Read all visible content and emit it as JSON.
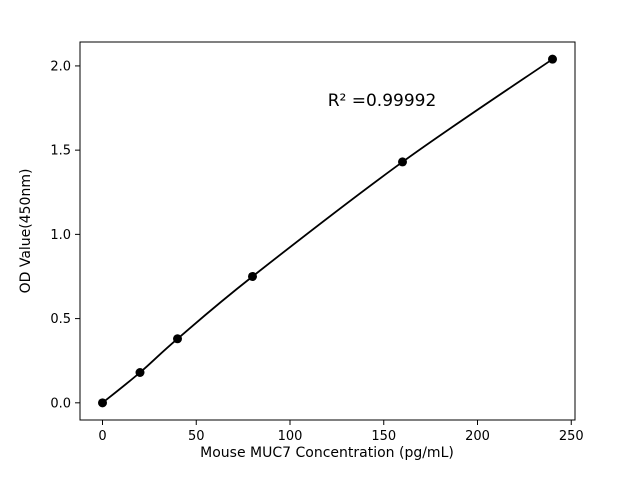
{
  "chart_data": {
    "type": "line",
    "series_name": "standard-curve",
    "x": [
      0,
      20,
      40,
      80,
      160,
      240
    ],
    "y": [
      0.0,
      0.18,
      0.38,
      0.75,
      1.43,
      2.04
    ],
    "title": "",
    "xlabel": "Mouse MUC7 Concentration (pg/mL)",
    "ylabel": "OD Value(450nm)",
    "annotation": "R² =0.99992",
    "xlim": [
      -12,
      252
    ],
    "ylim": [
      -0.102,
      2.142
    ],
    "xticks": {
      "values": [
        0,
        50,
        100,
        150,
        200,
        250
      ],
      "labels": [
        "0",
        "50",
        "100",
        "150",
        "200",
        "250"
      ]
    },
    "yticks": {
      "values": [
        0.0,
        0.5,
        1.0,
        1.5,
        2.0
      ],
      "labels": [
        "0.0",
        "0.5",
        "1.0",
        "1.5",
        "2.0"
      ]
    },
    "grid": false,
    "legend": null,
    "line_color": "#000000",
    "marker_color": "#000000",
    "background_color": "#ffffff"
  }
}
